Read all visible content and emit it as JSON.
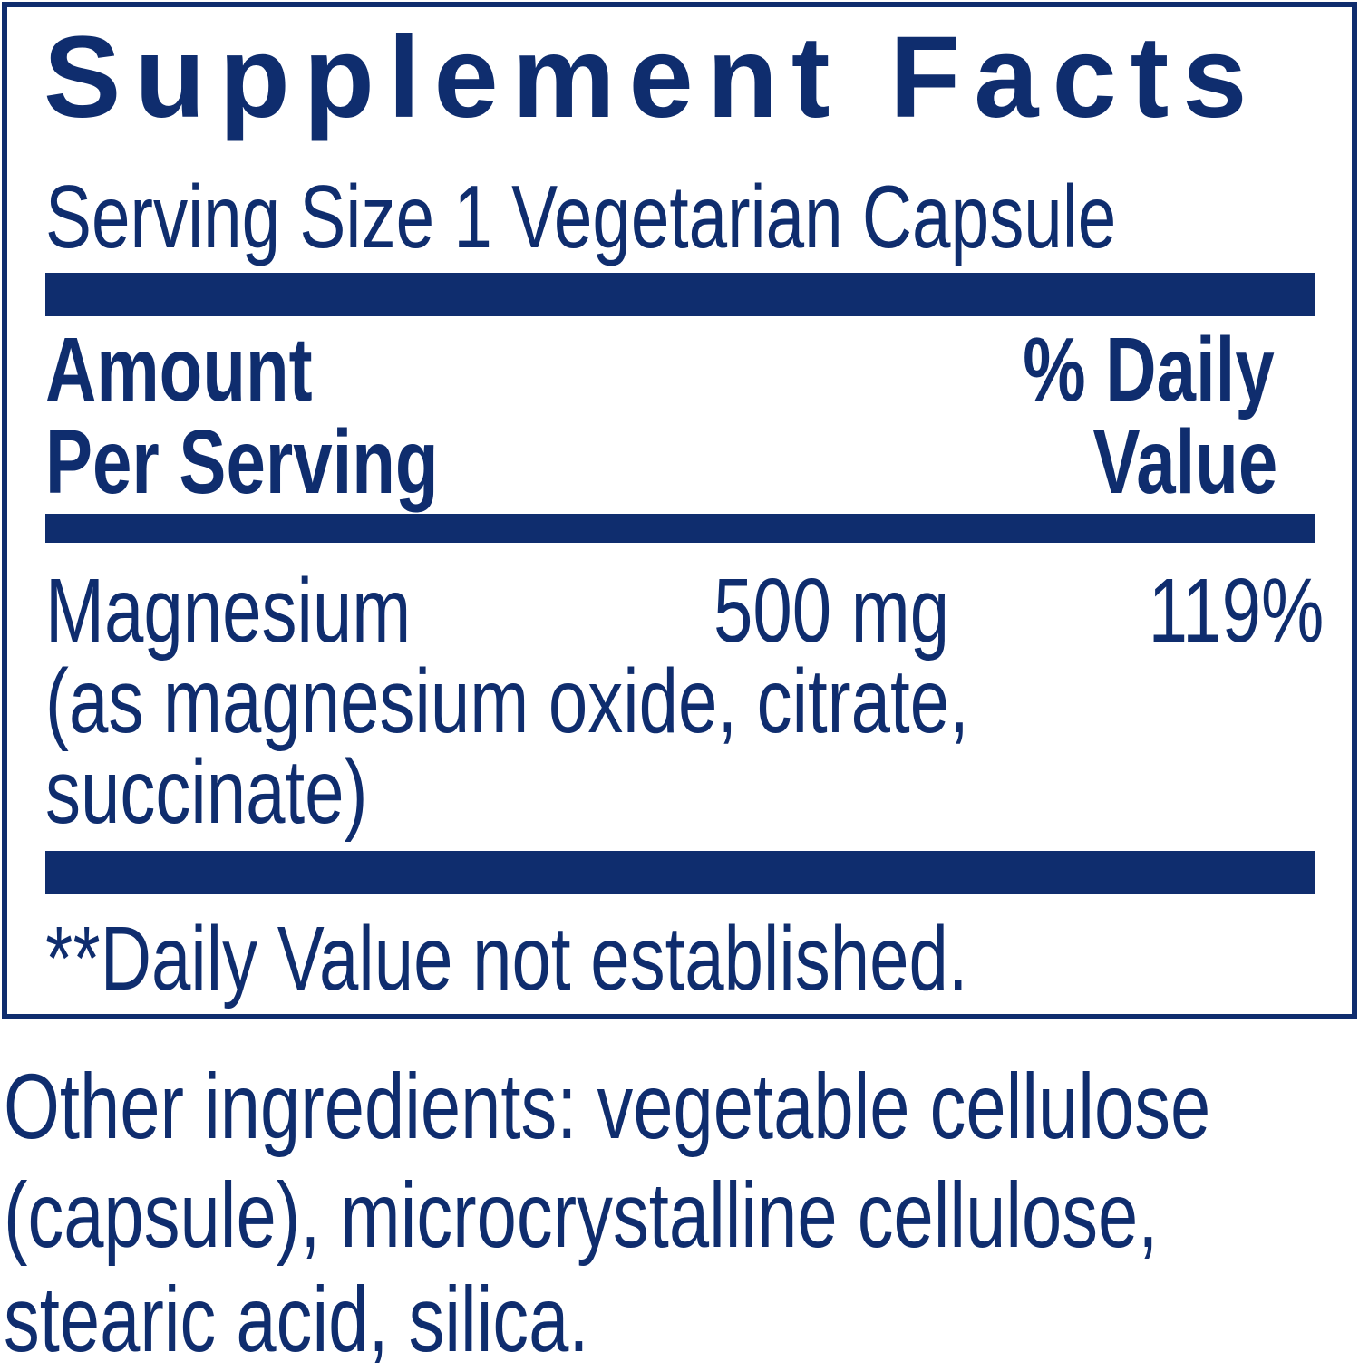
{
  "label": {
    "title": "Supplement Facts",
    "serving_size": "Serving Size 1 Vegetarian Capsule",
    "header_left": [
      "Amount",
      "Per Serving"
    ],
    "header_right": [
      "% Daily",
      "Value"
    ],
    "rows": [
      {
        "name": "Magnesium",
        "detail": [
          "(as magnesium oxide, citrate,",
          "succinate)"
        ],
        "amount": "500 mg",
        "daily_value": "119%"
      }
    ],
    "footnote": "**Daily Value not established."
  },
  "other_ingredients": [
    "Other ingredients: vegetable cellulose",
    "(capsule), microcrystalline cellulose,",
    "stearic acid, silica."
  ],
  "colors": {
    "ink": "#0f2d6e",
    "background": "#ffffff"
  }
}
